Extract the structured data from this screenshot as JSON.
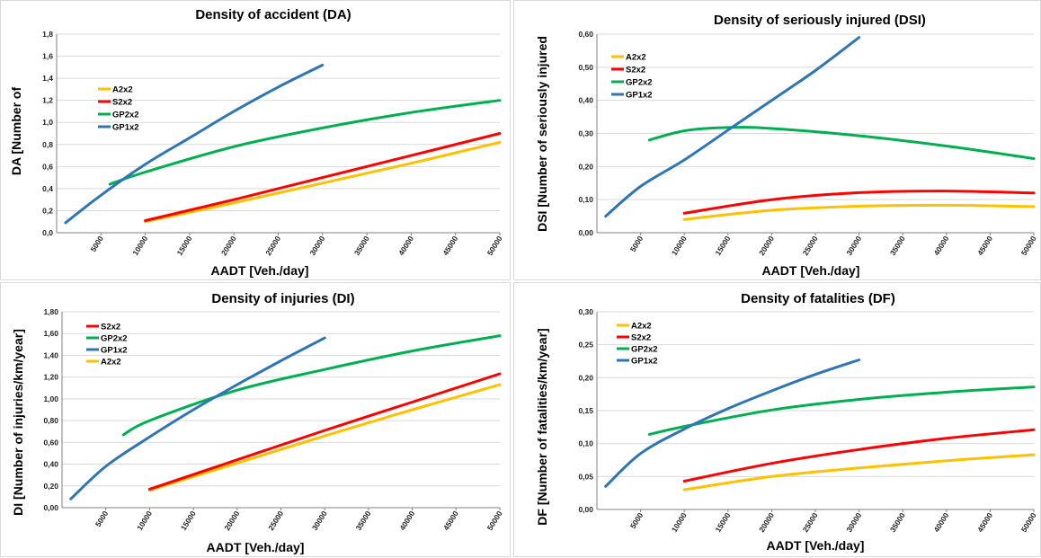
{
  "chart_data": [
    {
      "type": "line",
      "title": "Density of accident (DA)",
      "xlabel": "AADT [Veh./day]",
      "ylabel": "DA [Number of",
      "xlim": [
        0,
        50000
      ],
      "ylim": [
        0,
        1.8
      ],
      "x_ticks": [
        "5000",
        "10000",
        "15000",
        "20000",
        "25000",
        "30000",
        "35000",
        "40000",
        "45000",
        "50000"
      ],
      "y_ticks": [
        "0,0",
        "0,2",
        "0,4",
        "0,6",
        "0,8",
        "1,0",
        "1,2",
        "1,4",
        "1,6",
        "1,8"
      ],
      "legend_position": "left",
      "legend_order": [
        "A2x2",
        "S2x2",
        "GP2x2",
        "GP1x2"
      ],
      "series": [
        {
          "name": "A2x2",
          "color": "#FFC000",
          "x": [
            10000,
            20000,
            30000,
            40000,
            50000
          ],
          "y": [
            0.1,
            0.27,
            0.45,
            0.63,
            0.82
          ]
        },
        {
          "name": "S2x2",
          "color": "#FF0000",
          "x": [
            10000,
            20000,
            30000,
            40000,
            50000
          ],
          "y": [
            0.11,
            0.3,
            0.5,
            0.7,
            0.9
          ]
        },
        {
          "name": "GP2x2",
          "color": "#00B050",
          "x": [
            6000,
            10000,
            20000,
            30000,
            40000,
            50000
          ],
          "y": [
            0.44,
            0.55,
            0.78,
            0.95,
            1.09,
            1.2
          ]
        },
        {
          "name": "GP1x2",
          "color": "#2E75B6",
          "x": [
            1000,
            5000,
            10000,
            15000,
            20000,
            25000,
            30000
          ],
          "y": [
            0.09,
            0.34,
            0.62,
            0.86,
            1.1,
            1.32,
            1.52
          ]
        }
      ]
    },
    {
      "type": "line",
      "title": "Density of seriously injured (DSI)",
      "xlabel": "AADT [Veh./day]",
      "ylabel": "DSI [Number of seriously injured",
      "xlim": [
        0,
        50000
      ],
      "ylim": [
        0,
        0.6
      ],
      "x_ticks": [
        "5000",
        "10000",
        "15000",
        "20000",
        "25000",
        "30000",
        "35000",
        "40000",
        "45000",
        "50000"
      ],
      "y_ticks": [
        "0,00",
        "0,10",
        "0,20",
        "0,30",
        "0,40",
        "0,50",
        "0,60"
      ],
      "legend_position": "top-left",
      "legend_order": [
        "A2x2",
        "S2x2",
        "GP2x2",
        "GP1x2"
      ],
      "series": [
        {
          "name": "A2x2",
          "color": "#FFC000",
          "x": [
            10000,
            20000,
            30000,
            40000,
            50000
          ],
          "y": [
            0.04,
            0.068,
            0.08,
            0.083,
            0.079
          ]
        },
        {
          "name": "S2x2",
          "color": "#FF0000",
          "x": [
            10000,
            20000,
            30000,
            40000,
            50000
          ],
          "y": [
            0.059,
            0.1,
            0.121,
            0.126,
            0.12
          ]
        },
        {
          "name": "GP2x2",
          "color": "#00B050",
          "x": [
            6000,
            10000,
            15000,
            20000,
            30000,
            40000,
            50000
          ],
          "y": [
            0.28,
            0.308,
            0.318,
            0.315,
            0.293,
            0.262,
            0.224
          ]
        },
        {
          "name": "GP1x2",
          "color": "#2E75B6",
          "x": [
            1000,
            5000,
            10000,
            15000,
            20000,
            25000,
            30000
          ],
          "y": [
            0.05,
            0.14,
            0.22,
            0.31,
            0.4,
            0.49,
            0.59
          ]
        }
      ]
    },
    {
      "type": "line",
      "title": "Density of injuries (DI)",
      "xlabel": "AADT [Veh./day]",
      "ylabel": "DI [Number of injuries/km/year]",
      "xlim": [
        0,
        50000
      ],
      "ylim": [
        0,
        1.8
      ],
      "x_ticks": [
        "5000",
        "10000",
        "15000",
        "20000",
        "25000",
        "30000",
        "35000",
        "40000",
        "45000",
        "50000"
      ],
      "y_ticks": [
        "0,00",
        "0,20",
        "0,40",
        "0,60",
        "0,80",
        "1,00",
        "1,20",
        "1,40",
        "1,60",
        "1,80"
      ],
      "legend_position": "top-left",
      "legend_order": [
        "S2x2",
        "GP2x2",
        "GP1x2",
        "A2x2"
      ],
      "series": [
        {
          "name": "A2x2",
          "color": "#FFC000",
          "x": [
            10000,
            20000,
            30000,
            40000,
            50000
          ],
          "y": [
            0.16,
            0.41,
            0.66,
            0.9,
            1.13
          ]
        },
        {
          "name": "S2x2",
          "color": "#FF0000",
          "x": [
            10000,
            20000,
            30000,
            40000,
            50000
          ],
          "y": [
            0.17,
            0.44,
            0.71,
            0.97,
            1.23
          ]
        },
        {
          "name": "GP2x2",
          "color": "#00B050",
          "x": [
            7000,
            10000,
            20000,
            30000,
            40000,
            50000
          ],
          "y": [
            0.67,
            0.8,
            1.08,
            1.27,
            1.44,
            1.58
          ]
        },
        {
          "name": "GP1x2",
          "color": "#2E75B6",
          "x": [
            1000,
            5000,
            10000,
            15000,
            20000,
            25000,
            30000
          ],
          "y": [
            0.08,
            0.38,
            0.65,
            0.9,
            1.13,
            1.35,
            1.56
          ]
        }
      ]
    },
    {
      "type": "line",
      "title": "Density of fatalities (DF)",
      "xlabel": "AADT [Veh./day]",
      "ylabel": "DF [Number of fatalities/km/year]",
      "xlim": [
        0,
        50000
      ],
      "ylim": [
        0,
        0.3
      ],
      "x_ticks": [
        "5000",
        "10000",
        "15000",
        "20000",
        "25000",
        "30000",
        "35000",
        "40000",
        "45000",
        "50000"
      ],
      "y_ticks": [
        "0,00",
        "0,05",
        "0,10",
        "0,15",
        "0,20",
        "0,25",
        "0,30"
      ],
      "legend_position": "top-left",
      "legend_order": [
        "A2x2",
        "S2x2",
        "GP2x2",
        "GP1x2"
      ],
      "series": [
        {
          "name": "A2x2",
          "color": "#FFC000",
          "x": [
            10000,
            20000,
            30000,
            40000,
            50000
          ],
          "y": [
            0.03,
            0.05,
            0.063,
            0.074,
            0.083
          ]
        },
        {
          "name": "S2x2",
          "color": "#FF0000",
          "x": [
            10000,
            20000,
            30000,
            40000,
            50000
          ],
          "y": [
            0.043,
            0.07,
            0.091,
            0.108,
            0.121
          ]
        },
        {
          "name": "GP2x2",
          "color": "#00B050",
          "x": [
            6000,
            10000,
            20000,
            30000,
            40000,
            50000
          ],
          "y": [
            0.114,
            0.126,
            0.151,
            0.167,
            0.178,
            0.186
          ]
        },
        {
          "name": "GP1x2",
          "color": "#2E75B6",
          "x": [
            1000,
            5000,
            10000,
            15000,
            20000,
            25000,
            30000
          ],
          "y": [
            0.035,
            0.085,
            0.122,
            0.153,
            0.18,
            0.205,
            0.227
          ]
        }
      ]
    }
  ]
}
